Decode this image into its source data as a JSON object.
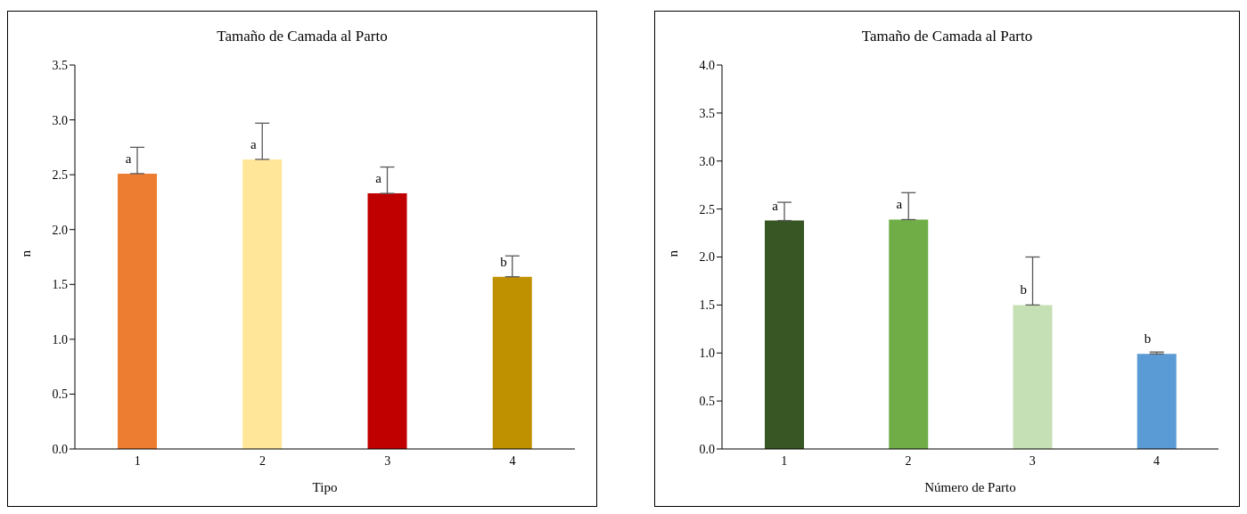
{
  "chart_data": [
    {
      "type": "bar",
      "title": "Tamaño de Camada al Parto",
      "xlabel": "Tipo",
      "ylabel": "n",
      "categories": [
        "1",
        "2",
        "3",
        "4"
      ],
      "values": [
        2.51,
        2.64,
        2.33,
        1.57
      ],
      "colors": [
        "#ed7d31",
        "#ffe699",
        "#c00000",
        "#bf9000"
      ],
      "errors": [
        [
          2.51,
          2.75
        ],
        [
          2.64,
          2.97
        ],
        [
          2.33,
          2.57
        ],
        [
          1.57,
          1.76
        ]
      ],
      "ylim": [
        0,
        3.5
      ],
      "yticks": [
        {
          "value": 0,
          "label": "0.0"
        },
        {
          "value": 0.5,
          "label": "0.5"
        },
        {
          "value": 1,
          "label": "1.0"
        },
        {
          "value": 1.5,
          "label": "1.5"
        },
        {
          "value": 2,
          "label": "2.0"
        },
        {
          "value": 2.5,
          "label": "2.5"
        },
        {
          "value": 3,
          "label": "3.0"
        },
        {
          "value": 3.5,
          "label": "3.5"
        }
      ],
      "grid": false,
      "legend": false,
      "annotations": [
        {
          "text": "a",
          "x": "1",
          "y": 2.51
        },
        {
          "text": "a",
          "x": "2",
          "y": 2.64
        },
        {
          "text": "a",
          "x": "3",
          "y": 2.33
        },
        {
          "text": "b",
          "x": "4",
          "y": 1.57
        }
      ]
    },
    {
      "type": "bar",
      "title": "Tamaño de Camada al Parto",
      "xlabel": "Número de Parto",
      "ylabel": "n",
      "categories": [
        "1",
        "2",
        "3",
        "4"
      ],
      "values": [
        2.38,
        2.39,
        1.5,
        0.99
      ],
      "colors": [
        "#375623",
        "#70ad47",
        "#c5e0b4",
        "#5b9bd5"
      ],
      "errors": [
        [
          2.38,
          2.57
        ],
        [
          2.39,
          2.67
        ],
        [
          1.5,
          2.0
        ],
        [
          0.99,
          1.01
        ]
      ],
      "ylim": [
        0,
        4
      ],
      "yticks": [
        {
          "value": 0,
          "label": "0.0"
        },
        {
          "value": 0.5,
          "label": "0.5"
        },
        {
          "value": 1,
          "label": "1.0"
        },
        {
          "value": 1.5,
          "label": "1.5"
        },
        {
          "value": 2,
          "label": "2.0"
        },
        {
          "value": 2.5,
          "label": "2.5"
        },
        {
          "value": 3,
          "label": "3.0"
        },
        {
          "value": 3.5,
          "label": "3.5"
        },
        {
          "value": 4,
          "label": "4.0"
        }
      ],
      "grid": false,
      "legend": false,
      "annotations": [
        {
          "text": "a",
          "x": "1",
          "y": 2.38
        },
        {
          "text": "a",
          "x": "2",
          "y": 2.39
        },
        {
          "text": "b",
          "x": "3",
          "y": 1.5
        },
        {
          "text": "b",
          "x": "4",
          "y": 0.99
        }
      ]
    }
  ]
}
